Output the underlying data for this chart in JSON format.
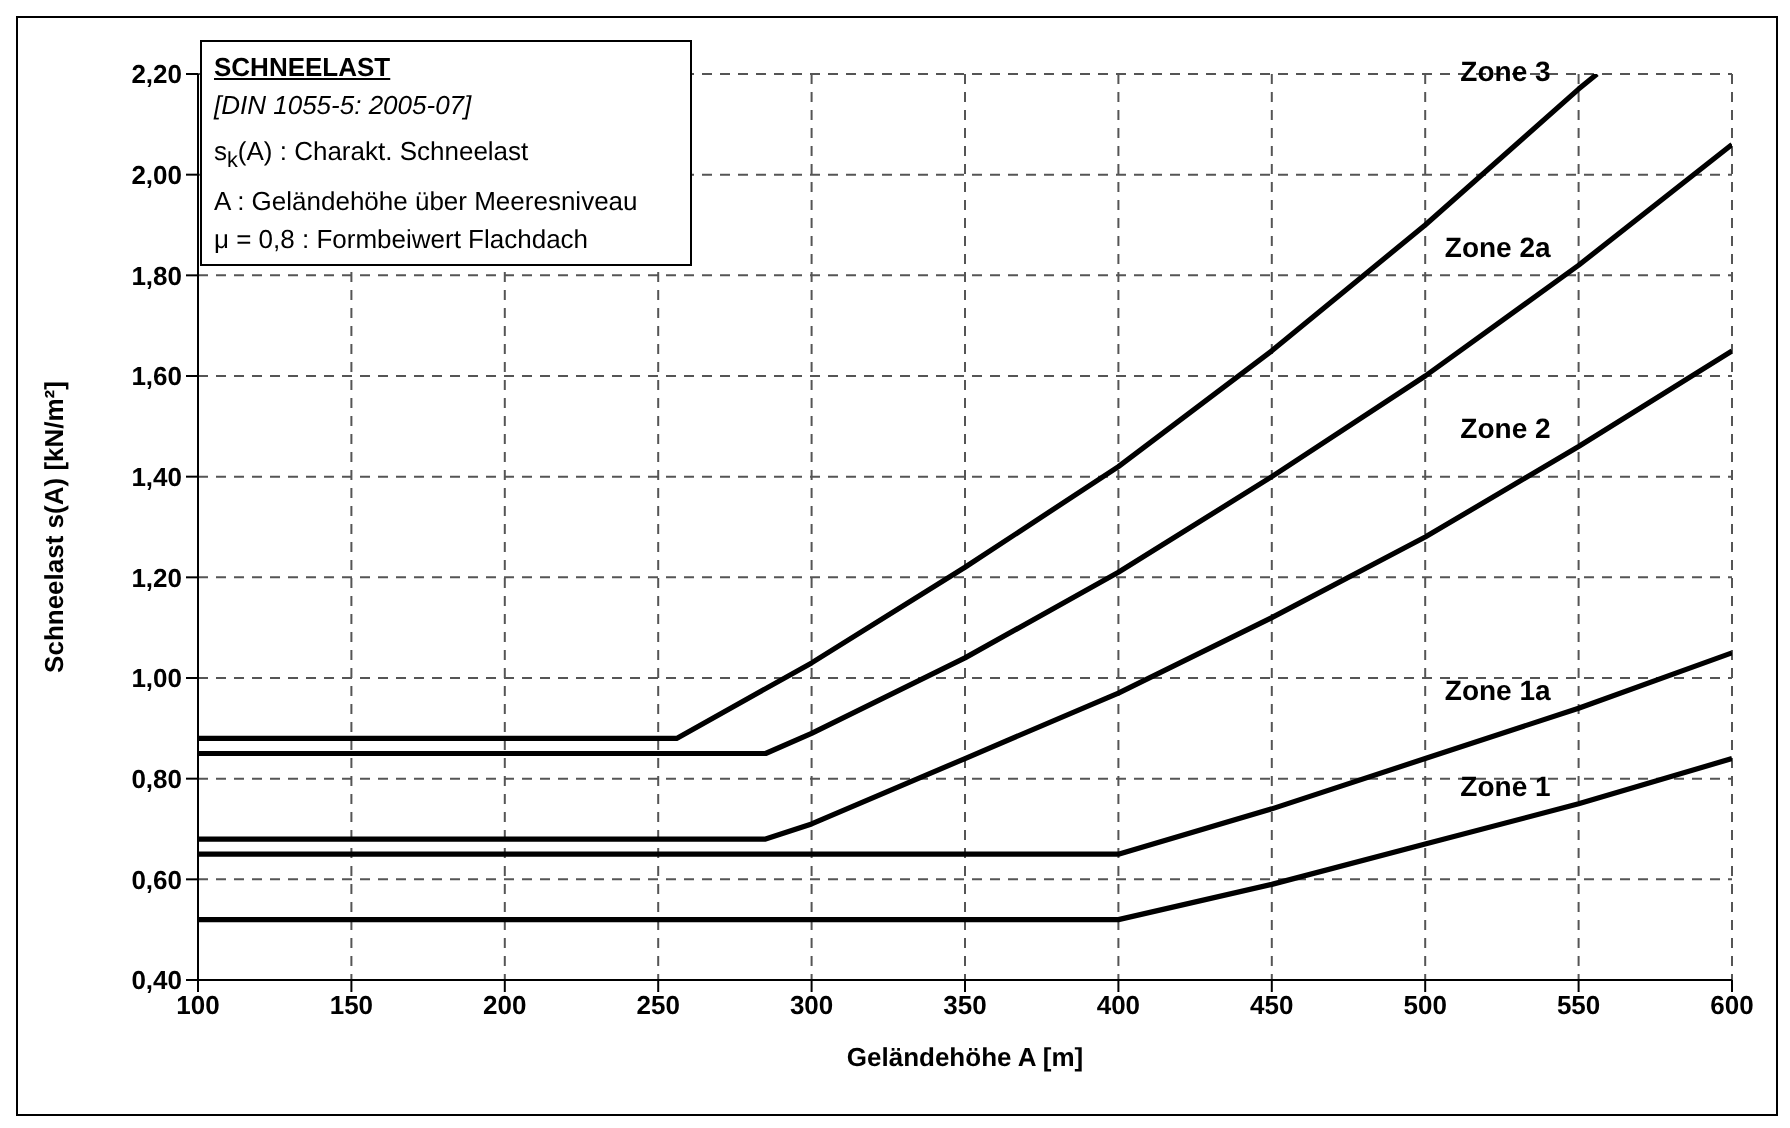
{
  "chart_data": {
    "type": "line",
    "title": "SCHNEELAST",
    "subtitle": "[DIN 1055-5: 2005-07]",
    "annotations": [
      "s$_{k}$(A) : Charakt. Schneelast",
      "A : Geländehöhe über Meeresniveau",
      "μ = 0,8 : Formbeiwert Flachdach"
    ],
    "xlabel": "Geländehöhe A [m]",
    "ylabel": "Schneelast s(A) [kN/m²]",
    "xlim": [
      100,
      600
    ],
    "xticks": [
      100,
      150,
      200,
      250,
      300,
      350,
      400,
      450,
      500,
      550,
      600
    ],
    "ylim": [
      0.4,
      2.2
    ],
    "yticks": [
      {
        "value": 0.4,
        "label": "0,40"
      },
      {
        "value": 0.6,
        "label": "0,60"
      },
      {
        "value": 0.8,
        "label": "0,80"
      },
      {
        "value": 1.0,
        "label": "1,00"
      },
      {
        "value": 1.2,
        "label": "1,20"
      },
      {
        "value": 1.4,
        "label": "1,40"
      },
      {
        "value": 1.6,
        "label": "1,60"
      },
      {
        "value": 1.8,
        "label": "1,80"
      },
      {
        "value": 2.0,
        "label": "2,00"
      },
      {
        "value": 2.2,
        "label": "2,20"
      }
    ],
    "grid": true,
    "series": [
      {
        "name": "Zone 3",
        "color": "#000000",
        "x": [
          100,
          256,
          300,
          350,
          400,
          450,
          500,
          550,
          556
        ],
        "values": [
          0.88,
          0.88,
          1.03,
          1.22,
          1.42,
          1.65,
          1.9,
          2.17,
          2.2
        ]
      },
      {
        "name": "Zone 2a",
        "color": "#000000",
        "x": [
          100,
          285,
          300,
          350,
          400,
          450,
          500,
          550,
          600
        ],
        "values": [
          0.85,
          0.85,
          0.89,
          1.04,
          1.21,
          1.4,
          1.6,
          1.82,
          2.06
        ]
      },
      {
        "name": "Zone 2",
        "color": "#000000",
        "x": [
          100,
          285,
          300,
          350,
          400,
          450,
          500,
          550,
          600
        ],
        "values": [
          0.68,
          0.68,
          0.71,
          0.84,
          0.97,
          1.12,
          1.28,
          1.46,
          1.65
        ]
      },
      {
        "name": "Zone 1a",
        "color": "#000000",
        "x": [
          100,
          400,
          450,
          500,
          550,
          600
        ],
        "values": [
          0.65,
          0.65,
          0.74,
          0.84,
          0.94,
          1.05
        ]
      },
      {
        "name": "Zone 1",
        "color": "#000000",
        "x": [
          100,
          400,
          450,
          500,
          550,
          600
        ],
        "values": [
          0.52,
          0.52,
          0.59,
          0.67,
          0.75,
          0.84
        ]
      }
    ]
  }
}
